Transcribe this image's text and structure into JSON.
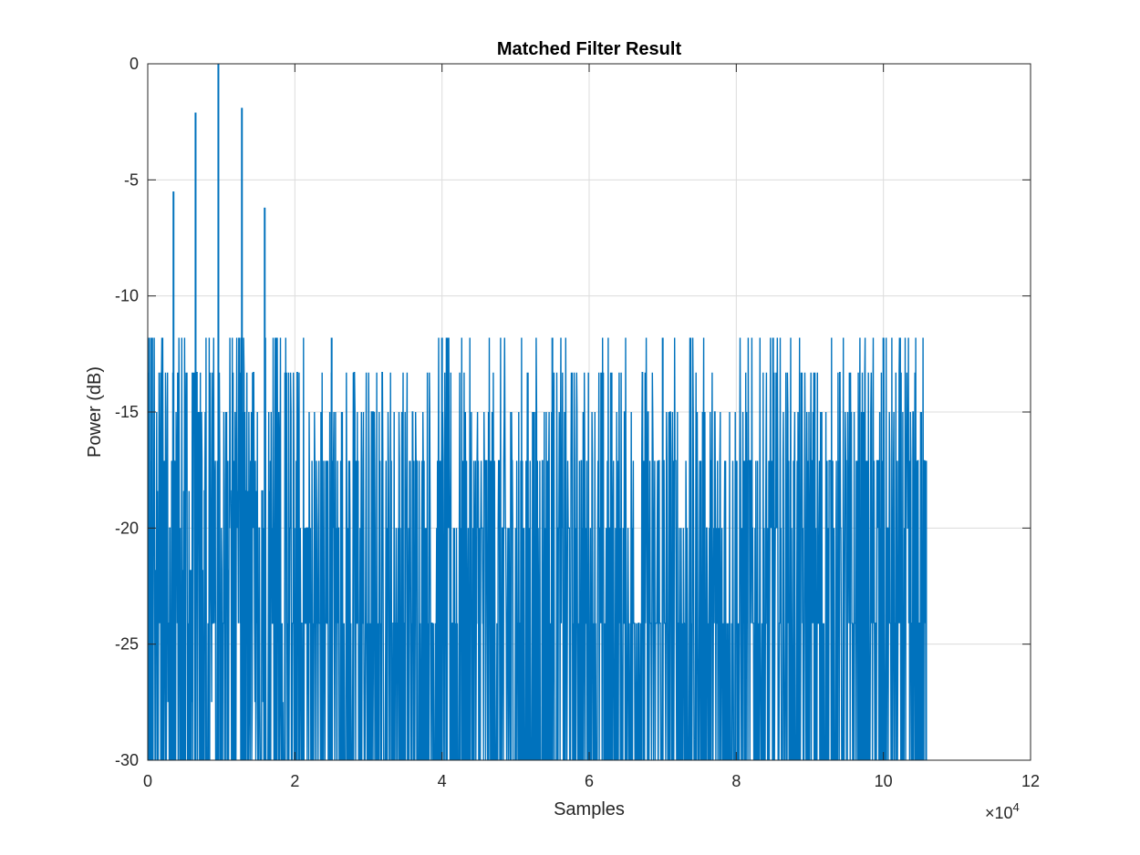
{
  "chart_data": {
    "type": "line",
    "title": "Matched Filter Result",
    "xlabel": "Samples",
    "ylabel": "Power (dB)",
    "xlim": [
      0,
      120000
    ],
    "ylim": [
      -30,
      0
    ],
    "xticks": [
      0,
      20000,
      40000,
      60000,
      80000,
      100000,
      120000
    ],
    "xtick_labels": [
      "0",
      "2",
      "4",
      "6",
      "8",
      "10",
      "12"
    ],
    "x_exponent_label": "×10",
    "x_exponent_power": "4",
    "yticks": [
      0,
      -5,
      -10,
      -15,
      -20,
      -25,
      -30
    ],
    "ytick_labels": [
      "0",
      "-5",
      "-10",
      "-15",
      "-20",
      "-25",
      "-30"
    ],
    "grid": true,
    "line_color": "#0072BD",
    "series": [
      {
        "x": [
          0,
          600,
          1800,
          3500,
          6500,
          9600,
          12800,
          15900,
          25000,
          40000,
          55000,
          70000,
          85000,
          100000,
          105800
        ],
        "values": [
          -17,
          -11.8,
          -21.8,
          -5.5,
          -2.1,
          0,
          -1.9,
          -6.2,
          -11.8,
          -11.8,
          -11.8,
          -11.8,
          -11.8,
          -11.8,
          -17.1
        ]
      }
    ],
    "noise_floor_db": -30,
    "signal_end_sample": 105800
  }
}
